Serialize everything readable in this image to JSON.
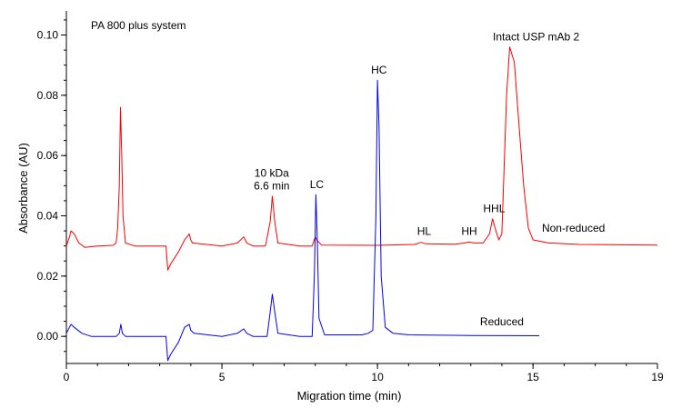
{
  "chart_data": {
    "type": "line",
    "title": "",
    "instrument_label": "PA 800 plus system",
    "xlabel": "Migration time (min)",
    "ylabel": "Absorbance (AU)",
    "xlim": [
      0,
      19
    ],
    "ylim": [
      -0.009,
      0.108
    ],
    "x_ticks": [
      0,
      5,
      10,
      15,
      19
    ],
    "y_ticks": [
      0.0,
      0.02,
      0.04,
      0.06,
      0.08,
      0.1
    ],
    "x_tick_labels": [
      "0",
      "5",
      "10",
      "15",
      "19"
    ],
    "y_tick_labels": [
      "0.00",
      "0.02",
      "0.04",
      "0.06",
      "0.08",
      "0.10"
    ],
    "grid": false,
    "series": [
      {
        "name": "Non-reduced",
        "color": "#ff0000",
        "points": [
          [
            0.0,
            0.03
          ],
          [
            0.1,
            0.033
          ],
          [
            0.15,
            0.035
          ],
          [
            0.25,
            0.034
          ],
          [
            0.4,
            0.031
          ],
          [
            0.6,
            0.0295
          ],
          [
            1.0,
            0.03
          ],
          [
            1.5,
            0.0302
          ],
          [
            1.6,
            0.031
          ],
          [
            1.65,
            0.036
          ],
          [
            1.7,
            0.05
          ],
          [
            1.74,
            0.076
          ],
          [
            1.78,
            0.06
          ],
          [
            1.82,
            0.04
          ],
          [
            1.9,
            0.031
          ],
          [
            2.2,
            0.03
          ],
          [
            3.0,
            0.03
          ],
          [
            3.2,
            0.03
          ],
          [
            3.26,
            0.022
          ],
          [
            3.35,
            0.024
          ],
          [
            3.6,
            0.028
          ],
          [
            3.8,
            0.032
          ],
          [
            3.95,
            0.034
          ],
          [
            4.0,
            0.032
          ],
          [
            4.05,
            0.031
          ],
          [
            5.0,
            0.03
          ],
          [
            5.5,
            0.031
          ],
          [
            5.7,
            0.033
          ],
          [
            5.8,
            0.031
          ],
          [
            6.0,
            0.03
          ],
          [
            6.4,
            0.03
          ],
          [
            6.55,
            0.038
          ],
          [
            6.62,
            0.0465
          ],
          [
            6.7,
            0.038
          ],
          [
            6.8,
            0.031
          ],
          [
            7.5,
            0.03
          ],
          [
            7.9,
            0.03
          ],
          [
            8.0,
            0.033
          ],
          [
            8.05,
            0.032
          ],
          [
            8.2,
            0.0303
          ],
          [
            10.0,
            0.0302
          ],
          [
            11.2,
            0.0305
          ],
          [
            11.4,
            0.0312
          ],
          [
            11.55,
            0.0307
          ],
          [
            12.5,
            0.0306
          ],
          [
            12.8,
            0.031
          ],
          [
            12.95,
            0.0313
          ],
          [
            13.1,
            0.031
          ],
          [
            13.4,
            0.031
          ],
          [
            13.6,
            0.034
          ],
          [
            13.7,
            0.039
          ],
          [
            13.78,
            0.036
          ],
          [
            13.9,
            0.032
          ],
          [
            14.0,
            0.034
          ],
          [
            14.15,
            0.08
          ],
          [
            14.25,
            0.096
          ],
          [
            14.4,
            0.091
          ],
          [
            14.55,
            0.07
          ],
          [
            14.7,
            0.05
          ],
          [
            14.85,
            0.036
          ],
          [
            15.0,
            0.032
          ],
          [
            15.5,
            0.031
          ],
          [
            16.5,
            0.0305
          ],
          [
            19.0,
            0.0303
          ]
        ]
      },
      {
        "name": "Reduced",
        "color": "#0000ff",
        "points": [
          [
            0.0,
            0.001
          ],
          [
            0.1,
            0.003
          ],
          [
            0.15,
            0.004
          ],
          [
            0.25,
            0.003
          ],
          [
            0.5,
            0.001
          ],
          [
            0.8,
            0.0
          ],
          [
            1.2,
            0.0
          ],
          [
            1.6,
            0.0
          ],
          [
            1.7,
            0.001
          ],
          [
            1.75,
            0.004
          ],
          [
            1.8,
            0.001
          ],
          [
            1.9,
            0.0
          ],
          [
            2.5,
            0.0
          ],
          [
            3.2,
            0.0
          ],
          [
            3.26,
            -0.008
          ],
          [
            3.35,
            -0.006
          ],
          [
            3.6,
            -0.002
          ],
          [
            3.8,
            0.003
          ],
          [
            3.95,
            0.004
          ],
          [
            4.0,
            0.002
          ],
          [
            4.1,
            0.001
          ],
          [
            5.0,
            0.0
          ],
          [
            5.5,
            0.001
          ],
          [
            5.7,
            0.0025
          ],
          [
            5.8,
            0.001
          ],
          [
            6.0,
            0.0
          ],
          [
            6.45,
            0.0
          ],
          [
            6.55,
            0.008
          ],
          [
            6.62,
            0.014
          ],
          [
            6.7,
            0.008
          ],
          [
            6.8,
            0.001
          ],
          [
            7.5,
            0.0
          ],
          [
            7.9,
            0.0
          ],
          [
            7.97,
            0.02
          ],
          [
            8.02,
            0.047
          ],
          [
            8.07,
            0.03
          ],
          [
            8.12,
            0.006
          ],
          [
            8.3,
            0.0005
          ],
          [
            9.5,
            0.0005
          ],
          [
            9.7,
            0.001
          ],
          [
            9.85,
            0.002
          ],
          [
            9.95,
            0.04
          ],
          [
            10.0,
            0.085
          ],
          [
            10.05,
            0.07
          ],
          [
            10.12,
            0.02
          ],
          [
            10.25,
            0.003
          ],
          [
            10.5,
            0.001
          ],
          [
            11.0,
            0.0005
          ],
          [
            13.0,
            0.0003
          ],
          [
            15.2,
            0.0002
          ]
        ]
      }
    ],
    "annotations": [
      {
        "id": "kda",
        "lines": [
          "10 kDa",
          "6.6 min"
        ],
        "x": 6.6,
        "y": 0.0475
      },
      {
        "id": "lc",
        "lines": [
          "LC"
        ],
        "x": 8.05,
        "y": 0.048
      },
      {
        "id": "hc",
        "lines": [
          "HC"
        ],
        "x": 10.05,
        "y": 0.086
      },
      {
        "id": "hl",
        "lines": [
          "HL"
        ],
        "x": 11.5,
        "y": 0.0325
      },
      {
        "id": "hh",
        "lines": [
          "HH"
        ],
        "x": 12.95,
        "y": 0.0325
      },
      {
        "id": "hhl",
        "lines": [
          "HHL"
        ],
        "x": 13.75,
        "y": 0.04
      },
      {
        "id": "intact",
        "lines": [
          "Intact USP mAb 2"
        ],
        "x": 15.1,
        "y": 0.097
      },
      {
        "id": "nonreduced",
        "lines": [
          "Non-reduced"
        ],
        "x": 16.3,
        "y": 0.0335
      },
      {
        "id": "reduced",
        "lines": [
          "Reduced"
        ],
        "x": 14.0,
        "y": 0.0025
      }
    ]
  }
}
